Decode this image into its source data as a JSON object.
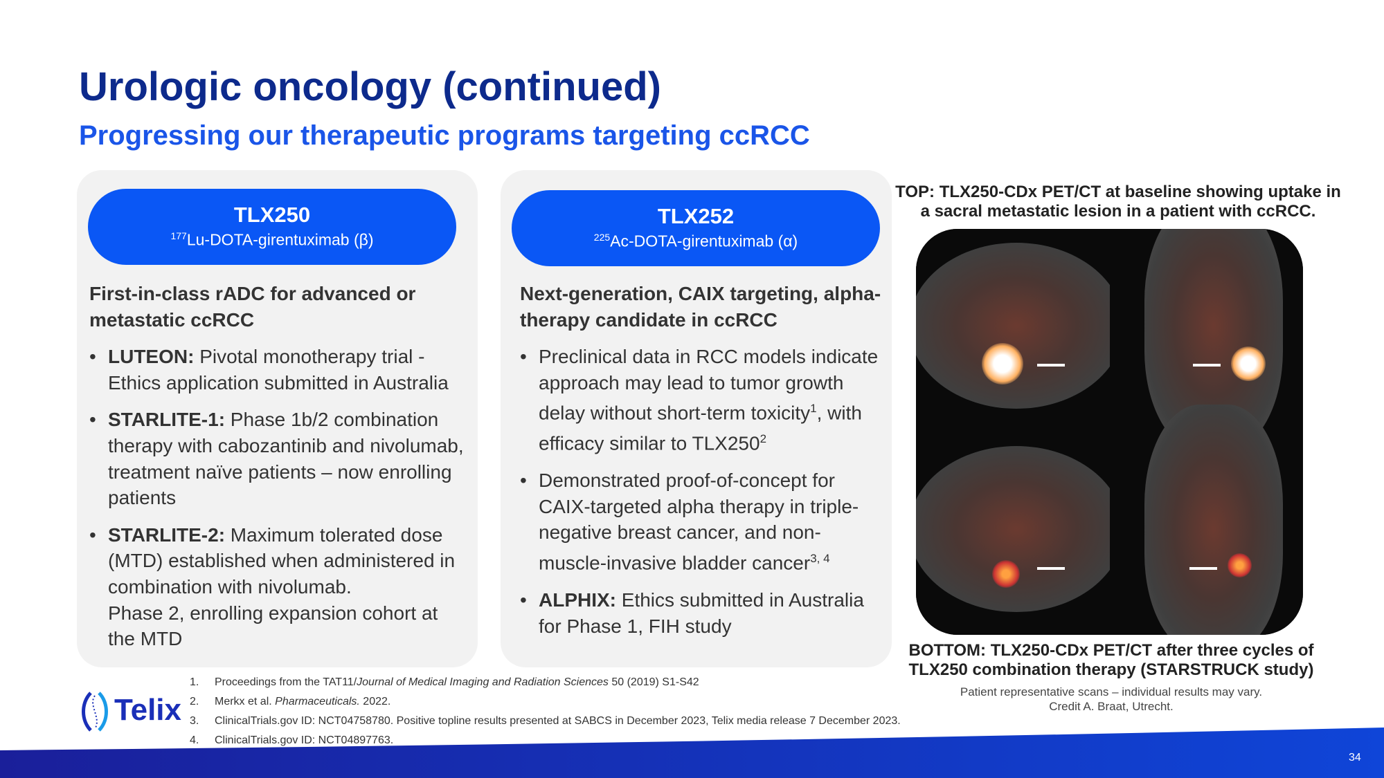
{
  "title": "Urologic oncology (continued)",
  "subtitle": "Progressing our therapeutic programs targeting ccRCC",
  "cards": [
    {
      "name": "TLX250",
      "isotope": "177",
      "compound": "Lu-DOTA-girentuximab (β)",
      "heading": "First-in-class rADC for advanced or metastatic ccRCC",
      "bullets": [
        {
          "bold": "LUTEON:",
          "text": " Pivotal monotherapy trial - Ethics application submitted in Australia"
        },
        {
          "bold": "STARLITE-1:",
          "text": " Phase 1b/2 combination therapy with cabozantinib and nivolumab, treatment naïve patients – now enrolling patients"
        },
        {
          "bold": "STARLITE-2:",
          "text": " Maximum tolerated dose (MTD) established when administered in combination with nivolumab.",
          "text2": "Phase 2, enrolling expansion cohort at the MTD"
        }
      ]
    },
    {
      "name": "TLX252",
      "isotope": "225",
      "compound": "Ac-DOTA-girentuximab (α)",
      "heading": "Next-generation, CAIX targeting, alpha-therapy candidate in ccRCC",
      "bullets": [
        {
          "t1": "Preclinical data in RCC models indicate approach may lead to tumor growth delay without short-term toxicity",
          "s1": "1",
          "t2": ", with efficacy similar to TLX250",
          "s2": "2"
        },
        {
          "t1": "Demonstrated proof-of-concept for CAIX-targeted alpha therapy in triple-negative breast cancer, and non-muscle-invasive bladder cancer",
          "s1": "3, 4"
        },
        {
          "bold": "ALPHIX:",
          "text": " Ethics submitted in Australia for Phase 1, FIH study"
        }
      ]
    }
  ],
  "image": {
    "top_caption": "TOP: TLX250-CDx PET/CT at baseline showing uptake in a sacral metastatic lesion in a patient with ccRCC.",
    "bottom_caption": "BOTTOM: TLX250-CDx PET/CT after three cycles of TLX250 combination therapy (STARSTRUCK study)",
    "note1": "Patient representative scans – individual results may vary.",
    "note2": "Credit A. Braat, Utrecht."
  },
  "footnotes": [
    {
      "n": "1.",
      "pre": "Proceedings from the TAT11/",
      "ital": "Journal of Medical Imaging and Radiation Sciences",
      "post": " 50 (2019) S1-S42"
    },
    {
      "n": "2.",
      "pre": "Merkx et al. ",
      "ital": "Pharmaceuticals.",
      "post": " 2022."
    },
    {
      "n": "3.",
      "pre": "ClinicalTrials.gov ID: NCT04758780. Positive topline results presented at SABCS in December 2023, Telix media release 7 December 2023.",
      "ital": "",
      "post": ""
    },
    {
      "n": "4.",
      "pre": "ClinicalTrials.gov ID: NCT04897763.",
      "ital": "",
      "post": ""
    }
  ],
  "logo": "Telix",
  "page_number": "34",
  "colors": {
    "title": "#0d2a8c",
    "subtitle": "#1a55e8",
    "pill": "#0a57f5",
    "band": "#1a2fb8"
  }
}
